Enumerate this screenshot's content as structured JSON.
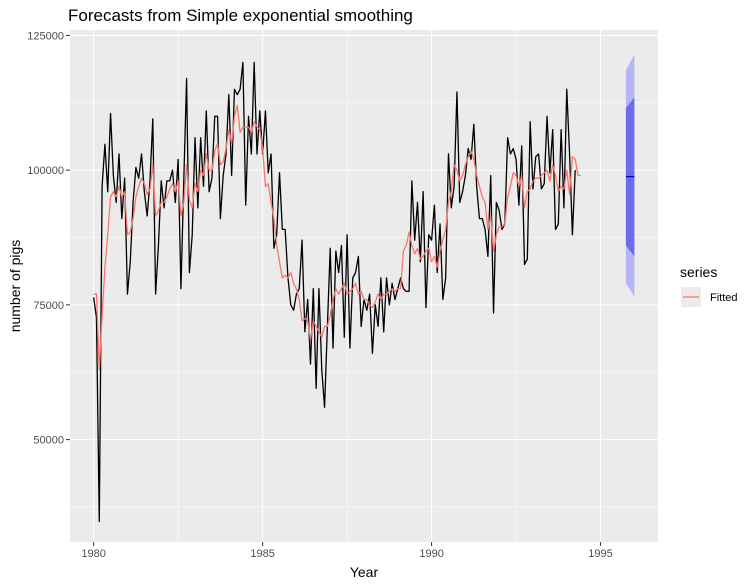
{
  "chart_data": {
    "type": "line",
    "title": "Forecasts from Simple exponential smoothing",
    "xlabel": "Year",
    "ylabel": "number of pigs",
    "xlim": [
      1979.3,
      1996.7
    ],
    "ylim": [
      31000,
      126000
    ],
    "x_ticks": [
      1980,
      1985,
      1990,
      1995
    ],
    "x_tick_labels": [
      "1980",
      "1985",
      "1990",
      "1995"
    ],
    "y_ticks": [
      50000,
      75000,
      100000,
      125000
    ],
    "y_tick_labels": [
      "50000",
      "75000",
      "100000",
      "125000"
    ],
    "grid": true,
    "legend": {
      "title": "series",
      "position": "right",
      "entries": [
        {
          "name": "Fitted",
          "color": "#f8766d"
        }
      ]
    },
    "colors": {
      "observed": "#000000",
      "fitted": "#f8766d",
      "forecast": "#0000cc",
      "pi80": "#6b6bee",
      "pi95": "#b6b6f6",
      "panel": "#ebebeb",
      "grid": "#ffffff"
    },
    "start_year": 1980,
    "frequency": 12,
    "observed": [
      76400,
      72600,
      34800,
      97000,
      104800,
      96000,
      110500,
      99000,
      94000,
      103000,
      91000,
      98500,
      77000,
      83000,
      94000,
      100500,
      98500,
      103000,
      96000,
      91500,
      98000,
      109500,
      77000,
      86000,
      98000,
      93000,
      98000,
      98000,
      100000,
      94000,
      102000,
      78000,
      98000,
      117000,
      81000,
      88000,
      106000,
      93000,
      106000,
      97000,
      111000,
      96000,
      98500,
      110000,
      110000,
      91000,
      99000,
      103000,
      114000,
      99000,
      115000,
      114000,
      115000,
      120000,
      93500,
      110000,
      103000,
      120000,
      103000,
      111000,
      103000,
      111000,
      99500,
      103000,
      85500,
      88000,
      99500,
      89000,
      89000,
      80000,
      75000,
      74000,
      77000,
      78000,
      87000,
      70000,
      76000,
      64000,
      78000,
      59500,
      78000,
      63000,
      56000,
      71000,
      85500,
      67000,
      85000,
      81000,
      86000,
      69000,
      88000,
      67000,
      80000,
      81000,
      84000,
      71000,
      76000,
      74000,
      77000,
      66000,
      75000,
      71000,
      80000,
      70000,
      80000,
      75000,
      79000,
      76000,
      78000,
      80000,
      78000,
      77500,
      77500,
      98000,
      87000,
      94000,
      83000,
      96000,
      74500,
      88000,
      87000,
      93500,
      81000,
      90000,
      76000,
      80000,
      103000,
      93000,
      97000,
      114500,
      94000,
      96000,
      99000,
      104000,
      102000,
      108500,
      97000,
      91000,
      91000,
      89000,
      84000,
      99000,
      73500,
      94000,
      92500,
      89000,
      90000,
      106000,
      103000,
      104000,
      102000,
      93500,
      104500,
      82500,
      83500,
      109000,
      96500,
      102500,
      103000,
      96500,
      97500,
      110000,
      99500,
      107500,
      89000,
      90000,
      107500,
      93000,
      115000,
      103000,
      88000,
      100000
    ],
    "fitted": [
      77000,
      77000,
      63000,
      73000,
      82000,
      88000,
      95000,
      96000,
      95000,
      97000,
      95000,
      96000,
      88000,
      88500,
      91000,
      95000,
      97000,
      98500,
      97500,
      95500,
      96500,
      101000,
      91500,
      92500,
      94000,
      94000,
      95000,
      96500,
      97500,
      96000,
      98000,
      91500,
      94000,
      101000,
      94500,
      93000,
      97500,
      96000,
      100000,
      99000,
      103000,
      100000,
      100000,
      103500,
      105000,
      101000,
      101500,
      104000,
      107500,
      105000,
      110000,
      112000,
      107000,
      108000,
      108000,
      108000,
      107000,
      109000,
      108000,
      107500,
      104000,
      97000,
      97500,
      94000,
      91000,
      86000,
      83000,
      80000,
      80500,
      80000,
      81000,
      79000,
      78000,
      76000,
      72000,
      72500,
      72000,
      68500,
      72000,
      71000,
      70000,
      69000,
      71000,
      71000,
      73000,
      76000,
      78000,
      77000,
      78000,
      79000,
      77000,
      77500,
      78000,
      79000,
      77000,
      77500,
      76000,
      76000,
      75000,
      74500,
      75500,
      77000,
      76000,
      77000,
      77000,
      77500,
      78000,
      77500,
      78000,
      78000,
      85000,
      86000,
      88500,
      86000,
      84500,
      85500,
      83500,
      84000,
      85000,
      85500,
      83000,
      84000,
      82000,
      85000,
      87000,
      89000,
      94000,
      96000,
      101000,
      100000,
      98000,
      99000,
      101000,
      102500,
      103500,
      102000,
      99000,
      97000,
      95000,
      94000,
      89000,
      91500,
      85000,
      88000,
      89500,
      89500,
      90000,
      95000,
      97000,
      99500,
      99000,
      97000,
      99000,
      93000,
      96000,
      96500,
      98000,
      98500,
      98500,
      99000,
      99500,
      100000,
      98000,
      101000,
      99000,
      96000,
      97000,
      96500,
      100000,
      95500,
      102500,
      102000,
      99000,
      99000
    ],
    "forecast": {
      "start": 1995.75,
      "end": 1996.0,
      "point": 98800,
      "lo80": [
        86000,
        84000
      ],
      "hi80": [
        111500,
        113500
      ],
      "lo95": [
        79000,
        76500
      ],
      "hi95": [
        118500,
        121500
      ]
    }
  }
}
